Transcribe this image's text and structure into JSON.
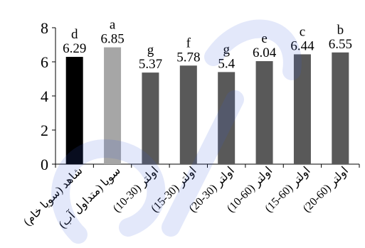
{
  "chart_data": {
    "type": "bar",
    "categories": [
      "شاهد (سویا خام)",
      "سویا (متداول آب)",
      "اولتر (30-10)",
      "اولتر (30-15)",
      "اولتر (30-20)",
      "اولتر (60-10)",
      "اولتر (60-15)",
      "اولتر (60-20)"
    ],
    "values": [
      6.29,
      6.85,
      5.37,
      5.78,
      5.4,
      6.04,
      6.44,
      6.55
    ],
    "value_labels": [
      "6.29",
      "6.85",
      "5.37",
      "5.78",
      "5.4",
      "6.04",
      "6.44",
      "6.55"
    ],
    "letters": [
      "d",
      "a",
      "g",
      "f",
      "g",
      "e",
      "c",
      "b"
    ],
    "bar_colors": [
      "#000000",
      "#a6a6a6",
      "#595959",
      "#595959",
      "#595959",
      "#595959",
      "#595959",
      "#595959"
    ],
    "ylim": [
      0,
      8
    ],
    "yticks": [
      "0",
      "2",
      "4",
      "6",
      "8"
    ],
    "grid": false,
    "title": "",
    "xlabel": "",
    "ylabel": ""
  },
  "colors": {
    "axis": "#000000",
    "watermark": "#3b5bdc"
  }
}
